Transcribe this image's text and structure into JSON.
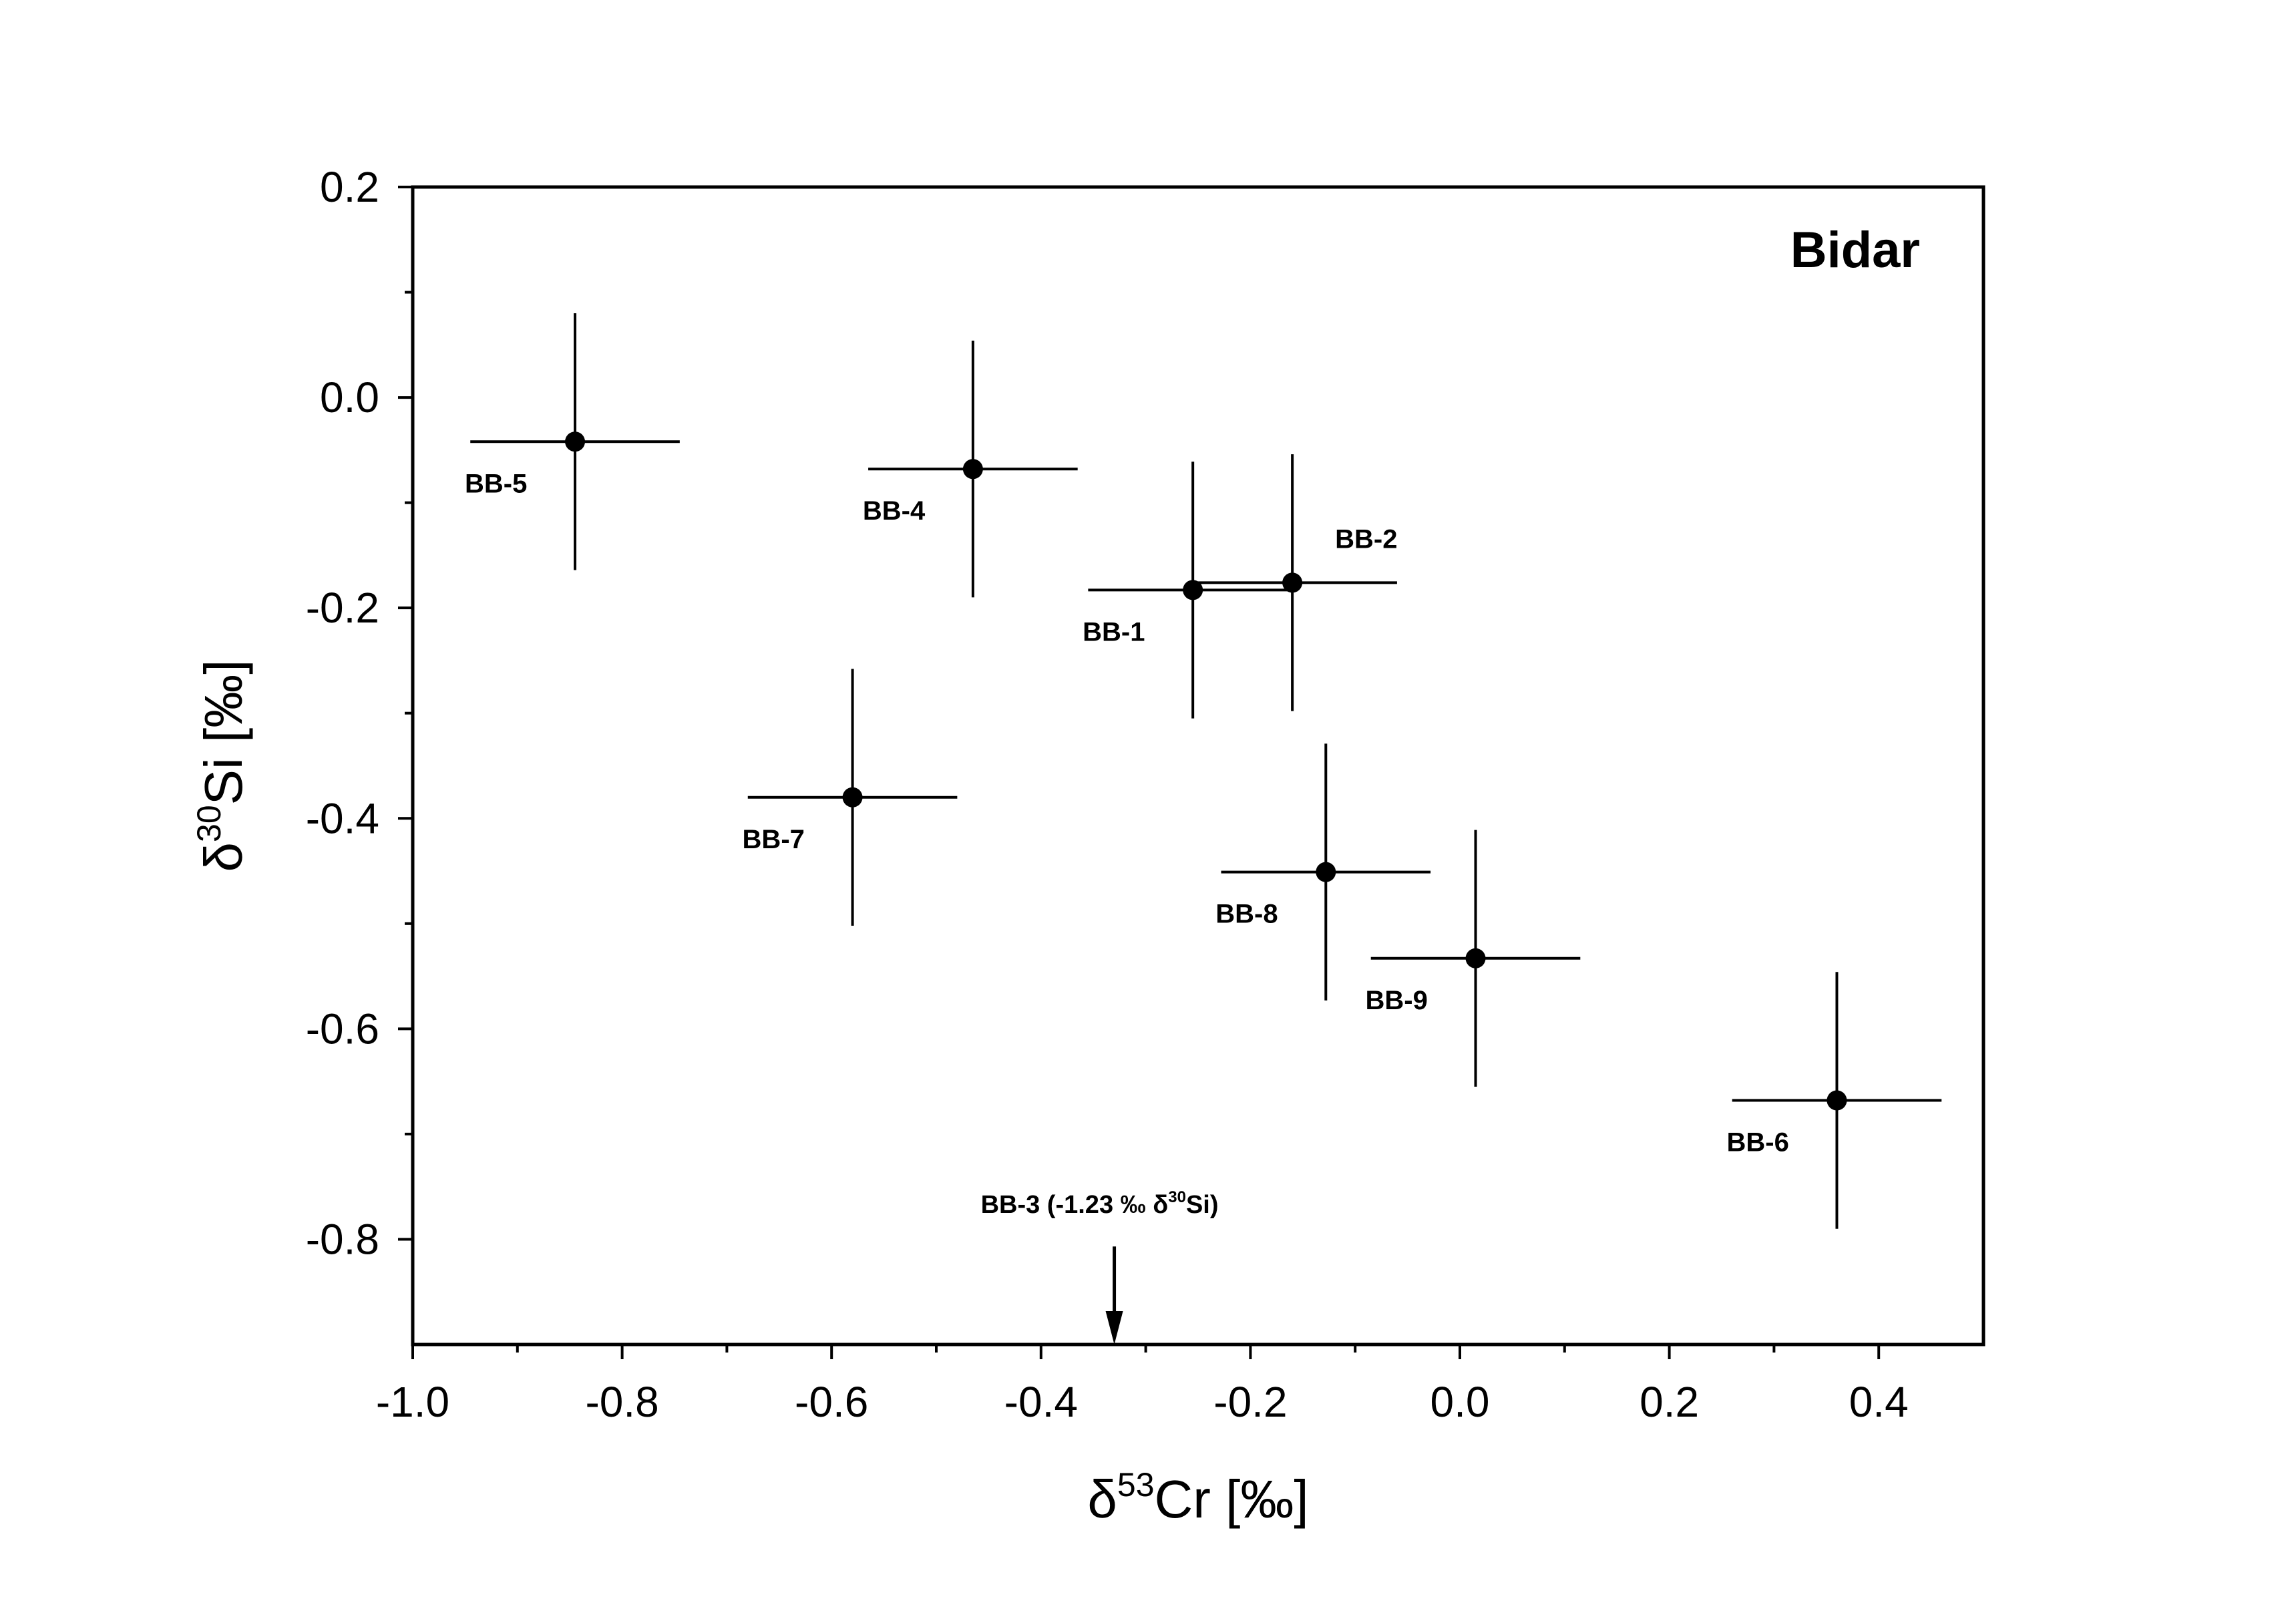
{
  "chart_data": {
    "type": "scatter",
    "title": "Bidar",
    "xlabel": {
      "prefix": "δ",
      "sup": "53",
      "main": "Cr [‰]"
    },
    "ylabel": {
      "prefix": "δ",
      "sup": "30",
      "main": "Si [‰]"
    },
    "xlim": [
      -1.0,
      0.5
    ],
    "ylim": [
      -0.9,
      0.2
    ],
    "xticks": [
      -1.0,
      -0.8,
      -0.6,
      -0.4,
      -0.2,
      0.0,
      0.2,
      0.4
    ],
    "xtick_labels": [
      "-1.0",
      "-0.8",
      "-0.6",
      "-0.4",
      "-0.2",
      "0.0",
      "0.2",
      "0.4"
    ],
    "yticks": [
      -0.8,
      -0.6,
      -0.4,
      -0.2,
      0.0,
      0.2
    ],
    "ytick_labels": [
      "-0.8",
      "-0.6",
      "-0.4",
      "-0.2",
      "0.0",
      "0.2"
    ],
    "grid": false,
    "legend": false,
    "marker_color": "#000000",
    "points": [
      {
        "label": "BB-5",
        "x": -0.845,
        "y": -0.042,
        "xerr": 0.1,
        "yerr": 0.122,
        "label_pos": "below-left"
      },
      {
        "label": "BB-4",
        "x": -0.465,
        "y": -0.068,
        "xerr": 0.1,
        "yerr": 0.122,
        "label_pos": "below-left"
      },
      {
        "label": "BB-1",
        "x": -0.255,
        "y": -0.183,
        "xerr": 0.1,
        "yerr": 0.122,
        "label_pos": "below-left"
      },
      {
        "label": "BB-2",
        "x": -0.16,
        "y": -0.176,
        "xerr": 0.1,
        "yerr": 0.122,
        "label_pos": "above-right"
      },
      {
        "label": "BB-7",
        "x": -0.58,
        "y": -0.38,
        "xerr": 0.1,
        "yerr": 0.122,
        "label_pos": "below-left"
      },
      {
        "label": "BB-8",
        "x": -0.128,
        "y": -0.451,
        "xerr": 0.1,
        "yerr": 0.122,
        "label_pos": "below-left"
      },
      {
        "label": "BB-9",
        "x": 0.015,
        "y": -0.533,
        "xerr": 0.1,
        "yerr": 0.122,
        "label_pos": "below-left"
      },
      {
        "label": "BB-6",
        "x": 0.36,
        "y": -0.668,
        "xerr": 0.1,
        "yerr": 0.122,
        "label_pos": "below-left"
      }
    ],
    "annotation": {
      "text_before": "BB-3 (-1.23 ‰ δ",
      "text_sup": "30",
      "text_after": "Si)",
      "x": -0.33,
      "arrow_from_y": -0.81,
      "arrow_to_y": -0.9
    }
  }
}
